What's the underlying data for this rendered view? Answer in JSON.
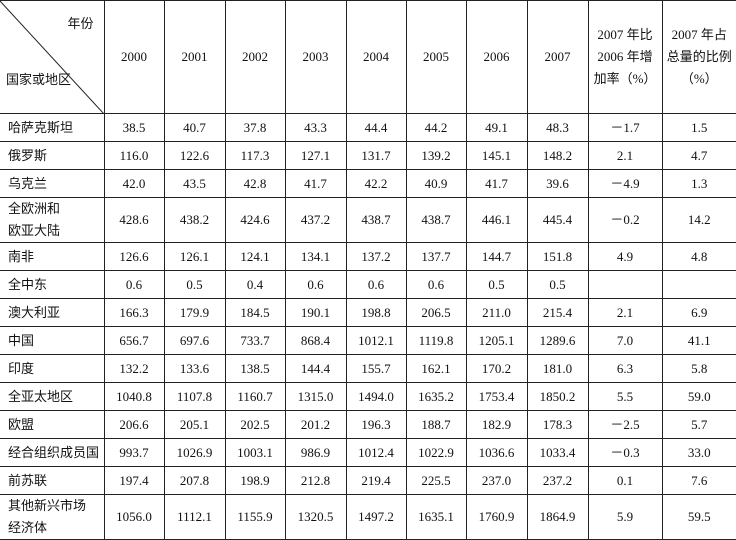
{
  "table": {
    "corner": {
      "top": "年份",
      "bottom": "国家或地区"
    },
    "columns": [
      [
        "2000"
      ],
      [
        "2001"
      ],
      [
        "2002"
      ],
      [
        "2003"
      ],
      [
        "2004"
      ],
      [
        "2005"
      ],
      [
        "2006"
      ],
      [
        "2007"
      ],
      [
        "2007 年比",
        "2006 年增",
        "加率（%）"
      ],
      [
        "2007 年占",
        "总量的比例",
        "（%）"
      ]
    ],
    "rows": [
      {
        "name": [
          "哈萨克斯坦"
        ],
        "values": [
          "38.5",
          "40.7",
          "37.8",
          "43.3",
          "44.4",
          "44.2",
          "49.1",
          "48.3",
          "－1.7",
          "1.5"
        ]
      },
      {
        "name": [
          "俄罗斯"
        ],
        "values": [
          "116.0",
          "122.6",
          "117.3",
          "127.1",
          "131.7",
          "139.2",
          "145.1",
          "148.2",
          "2.1",
          "4.7"
        ]
      },
      {
        "name": [
          "乌克兰"
        ],
        "values": [
          "42.0",
          "43.5",
          "42.8",
          "41.7",
          "42.2",
          "40.9",
          "41.7",
          "39.6",
          "－4.9",
          "1.3"
        ]
      },
      {
        "name": [
          "全欧洲和",
          "欧亚大陆"
        ],
        "values": [
          "428.6",
          "438.2",
          "424.6",
          "437.2",
          "438.7",
          "438.7",
          "446.1",
          "445.4",
          "－0.2",
          "14.2"
        ]
      },
      {
        "name": [
          "南非"
        ],
        "values": [
          "126.6",
          "126.1",
          "124.1",
          "134.1",
          "137.2",
          "137.7",
          "144.7",
          "151.8",
          "4.9",
          "4.8"
        ]
      },
      {
        "name": [
          "全中东"
        ],
        "values": [
          "0.6",
          "0.5",
          "0.4",
          "0.6",
          "0.6",
          "0.6",
          "0.5",
          "0.5"
        ]
      },
      {
        "name": [
          "澳大利亚"
        ],
        "values": [
          "166.3",
          "179.9",
          "184.5",
          "190.1",
          "198.8",
          "206.5",
          "211.0",
          "215.4",
          "2.1",
          "6.9"
        ]
      },
      {
        "name": [
          "中国"
        ],
        "values": [
          "656.7",
          "697.6",
          "733.7",
          "868.4",
          "1012.1",
          "1119.8",
          "1205.1",
          "1289.6",
          "7.0",
          "41.1"
        ]
      },
      {
        "name": [
          "印度"
        ],
        "values": [
          "132.2",
          "133.6",
          "138.5",
          "144.4",
          "155.7",
          "162.1",
          "170.2",
          "181.0",
          "6.3",
          "5.8"
        ]
      },
      {
        "name": [
          "全亚太地区"
        ],
        "values": [
          "1040.8",
          "1107.8",
          "1160.7",
          "1315.0",
          "1494.0",
          "1635.2",
          "1753.4",
          "1850.2",
          "5.5",
          "59.0"
        ]
      },
      {
        "name": [
          "欧盟"
        ],
        "values": [
          "206.6",
          "205.1",
          "202.5",
          "201.2",
          "196.3",
          "188.7",
          "182.9",
          "178.3",
          "－2.5",
          "5.7"
        ]
      },
      {
        "name": [
          "经合组织成员国"
        ],
        "values": [
          "993.7",
          "1026.9",
          "1003.1",
          "986.9",
          "1012.4",
          "1022.9",
          "1036.6",
          "1033.4",
          "－0.3",
          "33.0"
        ]
      },
      {
        "name": [
          "前苏联"
        ],
        "values": [
          "197.4",
          "207.8",
          "198.9",
          "212.8",
          "219.4",
          "225.5",
          "237.0",
          "237.2",
          "0.1",
          "7.6"
        ]
      },
      {
        "name": [
          "其他新兴市场",
          "经济体"
        ],
        "values": [
          "1056.0",
          "1112.1",
          "1155.9",
          "1320.5",
          "1497.2",
          "1635.1",
          "1760.9",
          "1864.9",
          "5.9",
          "59.5"
        ]
      }
    ]
  }
}
